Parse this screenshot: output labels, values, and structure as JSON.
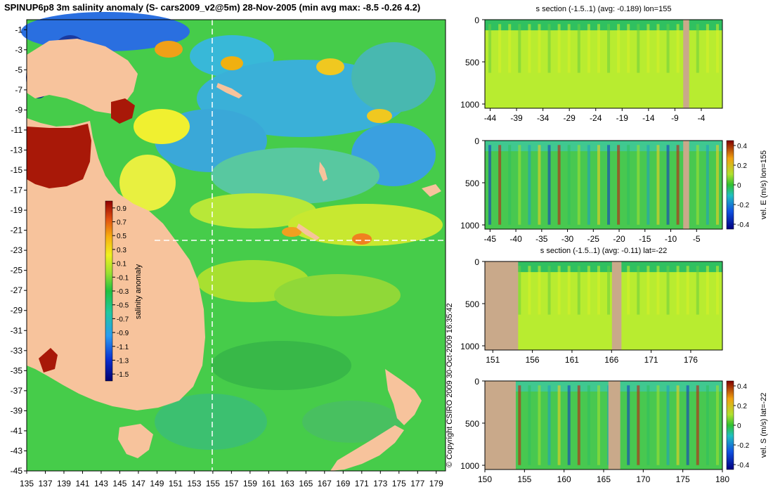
{
  "main_title": "SPINUP6p8 3m salinity anomaly (S- cars2009_v2@5m) 28-Nov-2005 (min avg max: -8.5 -0.26 4.2)",
  "copyright": "© Copyright CSIRO 2009   30-Oct-2009 16:35:42",
  "colors": {
    "land": "#f7c39c",
    "section_land": "#c9a98a",
    "guide_line": "#ffffff"
  },
  "chart_data": [
    {
      "id": "map",
      "type": "heatmap",
      "xticks": [
        "135",
        "137",
        "139",
        "141",
        "143",
        "145",
        "147",
        "149",
        "151",
        "153",
        "155",
        "157",
        "159",
        "161",
        "163",
        "165",
        "167",
        "169",
        "171",
        "173",
        "175",
        "177",
        "179"
      ],
      "yticks": [
        "-1",
        "-3",
        "-5",
        "-7",
        "-9",
        "-11",
        "-13",
        "-15",
        "-17",
        "-19",
        "-21",
        "-23",
        "-25",
        "-27",
        "-29",
        "-31",
        "-33",
        "-35",
        "-37",
        "-39",
        "-41",
        "-43",
        "-45"
      ],
      "xlim": [
        135,
        180
      ],
      "ylim": [
        -45,
        0
      ],
      "colorbar": {
        "label": "salinity anomaly",
        "ticks": [
          "0.9",
          "0.7",
          "0.5",
          "0.3",
          "0.1",
          "-0.1",
          "-0.3",
          "-0.5",
          "-0.7",
          "-0.9",
          "-1.1",
          "-1.3",
          "-1.5"
        ],
        "range": [
          -1.6,
          1.0
        ]
      },
      "guides": {
        "lon": 155,
        "lat": -22
      }
    },
    {
      "id": "s-section-lon",
      "type": "heatmap",
      "title": "s section (-1.5..1) (avg: -0.189) lon=155",
      "xticks": [
        "-44",
        "-39",
        "-34",
        "-29",
        "-24",
        "-19",
        "-14",
        "-9",
        "-4"
      ],
      "yticks": [
        "0",
        "500",
        "1000"
      ],
      "xlim": [
        -45,
        0
      ],
      "ylim": [
        1050,
        0
      ]
    },
    {
      "id": "vel-e-section",
      "type": "heatmap",
      "xticks": [
        "-45",
        "-40",
        "-35",
        "-30",
        "-25",
        "-20",
        "-15",
        "-10",
        "-5"
      ],
      "yticks": [
        "0",
        "500",
        "1000"
      ],
      "xlim": [
        -46,
        0
      ],
      "ylim": [
        1050,
        0
      ],
      "colorbar": {
        "label": "vel. E (m/s) lon=155",
        "ticks": [
          "0.4",
          "0.2",
          "0",
          "-0.2",
          "-0.4"
        ],
        "range": [
          -0.45,
          0.45
        ]
      }
    },
    {
      "id": "s-section-lat",
      "type": "heatmap",
      "title": "s section (-1.5..1) (avg: -0.11) lat=-22",
      "xticks": [
        "151",
        "156",
        "161",
        "166",
        "171",
        "176"
      ],
      "yticks": [
        "0",
        "500",
        "1000"
      ],
      "xlim": [
        150,
        180
      ],
      "ylim": [
        1050,
        0
      ]
    },
    {
      "id": "vel-s-section",
      "type": "heatmap",
      "xticks": [
        "150",
        "155",
        "160",
        "165",
        "170",
        "175",
        "180"
      ],
      "yticks": [
        "0",
        "500",
        "1000"
      ],
      "xlim": [
        150,
        180
      ],
      "ylim": [
        1050,
        0
      ],
      "colorbar": {
        "label": "vel. S (m/s) lat=-22",
        "ticks": [
          "0.4",
          "0.2",
          "0",
          "-0.2",
          "-0.4"
        ],
        "range": [
          -0.45,
          0.45
        ]
      }
    }
  ]
}
